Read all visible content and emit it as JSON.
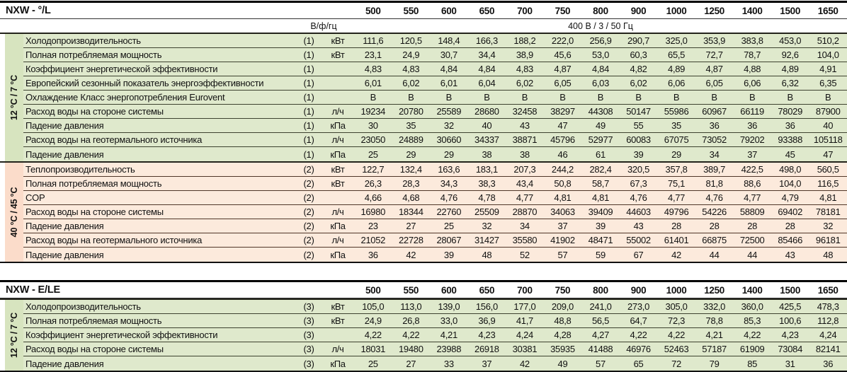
{
  "colors": {
    "green_row_bg": "#dfe9cc",
    "green_side_bg": "#d7e4bf",
    "pink_row_bg": "#fceadc",
    "pink_side_bg": "#fbdcca",
    "green_separator": "#3d422f",
    "pink_separator": "#503729",
    "border": "#000000"
  },
  "table1": {
    "title": "NXW - °/L",
    "models": [
      "500",
      "550",
      "600",
      "650",
      "700",
      "750",
      "800",
      "900",
      "1000",
      "1250",
      "1400",
      "1500",
      "1650"
    ],
    "power_row": {
      "label": "В/ф/гц",
      "value": "400 В / 3 / 50 Гц"
    },
    "sections": [
      {
        "side_label": "12 °C / 7 °C",
        "theme": "green",
        "rows": [
          {
            "label": "Холодопроизводительность",
            "marker": "(1)",
            "unit": "кВт",
            "values": [
              "111,6",
              "120,5",
              "148,4",
              "166,3",
              "188,2",
              "222,0",
              "256,9",
              "290,7",
              "325,0",
              "353,9",
              "383,8",
              "453,0",
              "510,2"
            ]
          },
          {
            "label": "Полная потребляемая мощность",
            "marker": "(1)",
            "unit": "кВт",
            "values": [
              "23,1",
              "24,9",
              "30,7",
              "34,4",
              "38,9",
              "45,6",
              "53,0",
              "60,3",
              "65,5",
              "72,7",
              "78,7",
              "92,6",
              "104,0"
            ]
          },
          {
            "label": "Коэффициент энергетической эффективности",
            "marker": "(1)",
            "unit": "",
            "values": [
              "4,83",
              "4,83",
              "4,84",
              "4,84",
              "4,83",
              "4,87",
              "4,84",
              "4,82",
              "4,89",
              "4,87",
              "4,88",
              "4,89",
              "4,91"
            ]
          },
          {
            "label": "Европейский сезонный показатель энергоэффективности",
            "marker": "(1)",
            "unit": "",
            "values": [
              "6,01",
              "6,02",
              "6,01",
              "6,04",
              "6,02",
              "6,05",
              "6,03",
              "6,02",
              "6,06",
              "6,05",
              "6,06",
              "6,32",
              "6,35"
            ]
          },
          {
            "label": "Охлаждение Класс энергопотребления Eurovent",
            "marker": "(1)",
            "unit": "",
            "values": [
              "B",
              "B",
              "B",
              "B",
              "B",
              "B",
              "B",
              "B",
              "B",
              "B",
              "B",
              "B",
              "B"
            ]
          },
          {
            "label": "Расход воды на стороне системы",
            "marker": "(1)",
            "unit": "л/ч",
            "values": [
              "19234",
              "20780",
              "25589",
              "28680",
              "32458",
              "38297",
              "44308",
              "50147",
              "55986",
              "60967",
              "66119",
              "78029",
              "87900"
            ]
          },
          {
            "label": "Падение давления",
            "marker": "(1)",
            "unit": "кПа",
            "values": [
              "30",
              "35",
              "32",
              "40",
              "43",
              "47",
              "49",
              "55",
              "35",
              "36",
              "36",
              "36",
              "40"
            ]
          },
          {
            "label": "Расход воды на геотермального источника",
            "marker": "(1)",
            "unit": "л/ч",
            "values": [
              "23050",
              "24889",
              "30660",
              "34337",
              "38871",
              "45796",
              "52977",
              "60083",
              "67075",
              "73052",
              "79202",
              "93388",
              "105118"
            ]
          },
          {
            "label": "Падение давления",
            "marker": "(1)",
            "unit": "кПа",
            "values": [
              "25",
              "29",
              "29",
              "38",
              "38",
              "46",
              "61",
              "39",
              "29",
              "34",
              "37",
              "45",
              "47"
            ]
          }
        ]
      },
      {
        "side_label": "40 °C / 45 °C",
        "theme": "pink",
        "rows": [
          {
            "label": "Теплопроизводительность",
            "marker": "(2)",
            "unit": "кВт",
            "values": [
              "122,7",
              "132,4",
              "163,6",
              "183,1",
              "207,3",
              "244,2",
              "282,4",
              "320,5",
              "357,8",
              "389,7",
              "422,5",
              "498,0",
              "560,5"
            ]
          },
          {
            "label": "Полная потребляемая мощность",
            "marker": "(2)",
            "unit": "кВт",
            "values": [
              "26,3",
              "28,3",
              "34,3",
              "38,3",
              "43,4",
              "50,8",
              "58,7",
              "67,3",
              "75,1",
              "81,8",
              "88,6",
              "104,0",
              "116,5"
            ]
          },
          {
            "label": "COP",
            "marker": "(2)",
            "unit": "",
            "values": [
              "4,66",
              "4,68",
              "4,76",
              "4,78",
              "4,77",
              "4,81",
              "4,81",
              "4,76",
              "4,77",
              "4,76",
              "4,77",
              "4,79",
              "4,81"
            ]
          },
          {
            "label": "Расход воды на стороне системы",
            "marker": "(2)",
            "unit": "л/ч",
            "values": [
              "16980",
              "18344",
              "22760",
              "25509",
              "28870",
              "34063",
              "39409",
              "44603",
              "49796",
              "54226",
              "58809",
              "69402",
              "78181"
            ]
          },
          {
            "label": "Падение давления",
            "marker": "(2)",
            "unit": "кПа",
            "values": [
              "23",
              "27",
              "25",
              "32",
              "34",
              "37",
              "39",
              "43",
              "28",
              "28",
              "28",
              "28",
              "32"
            ]
          },
          {
            "label": "Расход воды на геотермального источника",
            "marker": "(2)",
            "unit": "л/ч",
            "values": [
              "21052",
              "22728",
              "28067",
              "31427",
              "35580",
              "41902",
              "48471",
              "55002",
              "61401",
              "66875",
              "72500",
              "85466",
              "96181"
            ]
          },
          {
            "label": "Падение давления",
            "marker": "(2)",
            "unit": "кПа",
            "values": [
              "36",
              "42",
              "39",
              "48",
              "52",
              "57",
              "59",
              "67",
              "42",
              "44",
              "44",
              "43",
              "48"
            ]
          }
        ]
      }
    ]
  },
  "table2": {
    "title": "NXW - E/LE",
    "models": [
      "500",
      "550",
      "600",
      "650",
      "700",
      "750",
      "800",
      "900",
      "1000",
      "1250",
      "1400",
      "1500",
      "1650"
    ],
    "sections": [
      {
        "side_label": "12 °C / 7 °C",
        "theme": "green",
        "rows": [
          {
            "label": "Холодопроизводительность",
            "marker": "(3)",
            "unit": "кВт",
            "values": [
              "105,0",
              "113,0",
              "139,0",
              "156,0",
              "177,0",
              "209,0",
              "241,0",
              "273,0",
              "305,0",
              "332,0",
              "360,0",
              "425,5",
              "478,3"
            ]
          },
          {
            "label": "Полная потребляемая мощность",
            "marker": "(3)",
            "unit": "кВт",
            "values": [
              "24,9",
              "26,8",
              "33,0",
              "36,9",
              "41,7",
              "48,8",
              "56,5",
              "64,7",
              "72,3",
              "78,8",
              "85,3",
              "100,6",
              "112,8"
            ]
          },
          {
            "label": "Коэффициент энергетической эффективности",
            "marker": "(3)",
            "unit": "",
            "values": [
              "4,22",
              "4,22",
              "4,21",
              "4,23",
              "4,24",
              "4,28",
              "4,27",
              "4,22",
              "4,22",
              "4,21",
              "4,22",
              "4,23",
              "4,24"
            ]
          },
          {
            "label": "Расход воды на стороне системы",
            "marker": "(3)",
            "unit": "л/ч",
            "values": [
              "18031",
              "19480",
              "23988",
              "26918",
              "30381",
              "35935",
              "41488",
              "46976",
              "52463",
              "57187",
              "61909",
              "73084",
              "82141"
            ]
          },
          {
            "label": "Падение давления",
            "marker": "(3)",
            "unit": "кПа",
            "values": [
              "25",
              "27",
              "33",
              "37",
              "42",
              "49",
              "57",
              "65",
              "72",
              "79",
              "85",
              "31",
              "36"
            ]
          }
        ]
      }
    ]
  }
}
